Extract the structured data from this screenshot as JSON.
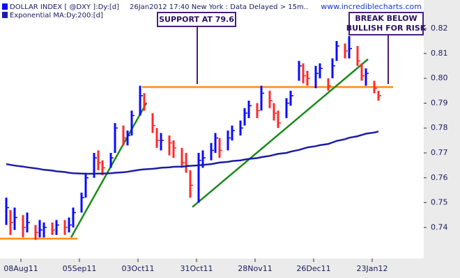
{
  "chart_data": {
    "type": "ohlc",
    "info": "26Jan2012 17:40 New York  : Data Delayed > 15m..",
    "watermark": "www.incrediblecharts.com",
    "x": [
      "2011-08-01",
      "2011-08-03",
      "2011-08-05",
      "2011-08-09",
      "2011-08-11",
      "2011-08-15",
      "2011-08-17",
      "2011-08-19",
      "2011-08-23",
      "2011-08-25",
      "2011-08-29",
      "2011-08-31",
      "2011-09-02",
      "2011-09-06",
      "2011-09-08",
      "2011-09-12",
      "2011-09-14",
      "2011-09-16",
      "2011-09-20",
      "2011-09-22",
      "2011-09-26",
      "2011-09-28",
      "2011-09-30",
      "2011-10-04",
      "2011-10-06",
      "2011-10-10",
      "2011-10-12",
      "2011-10-14",
      "2011-10-18",
      "2011-10-20",
      "2011-10-24",
      "2011-10-26",
      "2011-10-28",
      "2011-11-01",
      "2011-11-03",
      "2011-11-07",
      "2011-11-09",
      "2011-11-11",
      "2011-11-15",
      "2011-11-17",
      "2011-11-21",
      "2011-11-23",
      "2011-11-25",
      "2011-11-29",
      "2011-12-01",
      "2011-12-05",
      "2011-12-07",
      "2011-12-09",
      "2011-12-13",
      "2011-12-15",
      "2011-12-19",
      "2011-12-21",
      "2011-12-23",
      "2011-12-27",
      "2011-12-29",
      "2012-01-02",
      "2012-01-04",
      "2012-01-06",
      "2012-01-10",
      "2012-01-12",
      "2012-01-16",
      "2012-01-18",
      "2012-01-20",
      "2012-01-24",
      "2012-01-26"
    ],
    "series": [
      {
        "name": "DOLLAR INDEX [ @DXY ]:Dy:[d]",
        "color": "#0a0aff",
        "down_color": "#ff2a2a",
        "high": [
          0.752,
          0.747,
          0.748,
          0.745,
          0.746,
          0.741,
          0.743,
          0.742,
          0.742,
          0.743,
          0.743,
          0.744,
          0.748,
          0.754,
          0.762,
          0.77,
          0.771,
          0.767,
          0.77,
          0.782,
          0.781,
          0.779,
          0.787,
          0.797,
          0.794,
          0.786,
          0.78,
          0.778,
          0.777,
          0.775,
          0.772,
          0.77,
          0.763,
          0.77,
          0.771,
          0.774,
          0.778,
          0.776,
          0.779,
          0.781,
          0.783,
          0.788,
          0.791,
          0.79,
          0.797,
          0.795,
          0.79,
          0.787,
          0.792,
          0.795,
          0.807,
          0.806,
          0.803,
          0.805,
          0.806,
          0.8,
          0.808,
          0.815,
          0.814,
          0.817,
          0.813,
          0.806,
          0.804,
          0.799,
          0.795
        ],
        "low": [
          0.741,
          0.737,
          0.739,
          0.736,
          0.738,
          0.735,
          0.736,
          0.736,
          0.737,
          0.737,
          0.737,
          0.738,
          0.74,
          0.746,
          0.752,
          0.76,
          0.763,
          0.761,
          0.764,
          0.77,
          0.773,
          0.773,
          0.777,
          0.785,
          0.787,
          0.778,
          0.772,
          0.771,
          0.769,
          0.768,
          0.764,
          0.762,
          0.752,
          0.75,
          0.764,
          0.767,
          0.77,
          0.768,
          0.771,
          0.775,
          0.777,
          0.781,
          0.784,
          0.784,
          0.787,
          0.788,
          0.783,
          0.78,
          0.784,
          0.789,
          0.799,
          0.798,
          0.797,
          0.796,
          0.8,
          0.795,
          0.8,
          0.807,
          0.808,
          0.808,
          0.805,
          0.799,
          0.797,
          0.794,
          0.791
        ],
        "close": [
          0.748,
          0.742,
          0.744,
          0.74,
          0.742,
          0.738,
          0.739,
          0.74,
          0.739,
          0.741,
          0.74,
          0.741,
          0.746,
          0.752,
          0.76,
          0.768,
          0.766,
          0.764,
          0.768,
          0.78,
          0.776,
          0.777,
          0.785,
          0.793,
          0.79,
          0.781,
          0.775,
          0.775,
          0.774,
          0.772,
          0.766,
          0.765,
          0.757,
          0.767,
          0.768,
          0.771,
          0.776,
          0.771,
          0.776,
          0.779,
          0.78,
          0.786,
          0.789,
          0.787,
          0.794,
          0.791,
          0.786,
          0.782,
          0.79,
          0.793,
          0.805,
          0.801,
          0.8,
          0.802,
          0.804,
          0.797,
          0.805,
          0.813,
          0.811,
          0.812,
          0.807,
          0.801,
          0.802,
          0.796,
          0.793
        ]
      },
      {
        "name": "Exponential MA:Dy:200:[d]",
        "type": "line",
        "color": "#1c1ca8",
        "values": [
          0.7655,
          0.7652,
          0.7649,
          0.7645,
          0.7642,
          0.7638,
          0.7635,
          0.7632,
          0.7629,
          0.7626,
          0.7623,
          0.762,
          0.7618,
          0.7617,
          0.7616,
          0.7616,
          0.7617,
          0.7617,
          0.7618,
          0.762,
          0.7622,
          0.7624,
          0.7627,
          0.7632,
          0.7634,
          0.7636,
          0.7638,
          0.764,
          0.7642,
          0.7644,
          0.7645,
          0.7646,
          0.7648,
          0.765,
          0.7652,
          0.7655,
          0.7658,
          0.7661,
          0.7664,
          0.7667,
          0.767,
          0.7673,
          0.7676,
          0.7679,
          0.7683,
          0.7688,
          0.7692,
          0.7696,
          0.77,
          0.7705,
          0.7712,
          0.7717,
          0.7722,
          0.7727,
          0.7731,
          0.7736,
          0.7742,
          0.7748,
          0.7755,
          0.7761,
          0.7767,
          0.7772,
          0.7777,
          0.7782,
          0.7786
        ]
      }
    ],
    "lines": [
      {
        "x": [
          "2011-07-29",
          "2011-09-04"
        ],
        "y": [
          0.7355,
          0.7355
        ],
        "color": "#ff8c1a"
      },
      {
        "x": [
          "2011-10-05",
          "2012-02-02"
        ],
        "y": [
          0.7965,
          0.7965
        ],
        "color": "#ff8c1a"
      },
      {
        "x": [
          "2011-09-01",
          "2011-10-07"
        ],
        "y": [
          0.736,
          0.79
        ],
        "color": "#1a8a1a"
      },
      {
        "x": [
          "2011-10-29",
          "2012-01-21"
        ],
        "y": [
          0.7482,
          0.8077
        ],
        "color": "#1a8a1a"
      }
    ],
    "annotations": [
      "SUPPORT AT 79.6",
      "BREAK BELOW",
      "BULLISH FOR RISK"
    ],
    "xlim": [
      "2011-07-29",
      "2012-02-17"
    ],
    "xticks": [
      {
        "value": "2011-08-08",
        "label": "08Aug11"
      },
      {
        "value": "2011-09-05",
        "label": "05Sep11"
      },
      {
        "value": "2011-10-03",
        "label": "03Oct11"
      },
      {
        "value": "2011-10-31",
        "label": "31Oct11"
      },
      {
        "value": "2011-11-28",
        "label": "28Nov11"
      },
      {
        "value": "2011-12-26",
        "label": "26Dec11"
      },
      {
        "value": "2012-01-23",
        "label": "23Jan12"
      }
    ],
    "ylim": [
      0.7275,
      0.8315
    ],
    "yticks": [
      0.74,
      0.75,
      0.76,
      0.77,
      0.78,
      0.79,
      {
        "value": 0.8,
        "label": "0.80"
      },
      0.81,
      0.82
    ],
    "grid": false
  }
}
